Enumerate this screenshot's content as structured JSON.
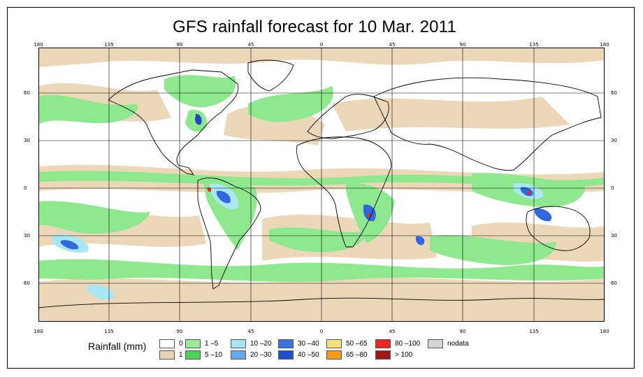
{
  "title": "GFS rainfall forecast for 10 Mar. 2011",
  "map": {
    "top_ticks": [
      "180",
      "135",
      "90",
      "45",
      "0",
      "45",
      "90",
      "135",
      "180"
    ],
    "bottom_ticks": [
      "180",
      "135",
      "90",
      "45",
      "0",
      "45",
      "90",
      "135",
      "180"
    ],
    "left_ticks": [
      "60",
      "30",
      "0",
      "30",
      "60"
    ],
    "right_ticks": [
      "60",
      "30",
      "0",
      "30",
      "60"
    ],
    "colors": {
      "ocean": "#ffffff",
      "light_rain": "#ecd8b8",
      "green_light": "#8ee88e",
      "green": "#4fd05f",
      "cyan": "#a8e8f4",
      "blue_light": "#6aa6f0",
      "blue": "#2f68e0",
      "blue_dark": "#1d46c8",
      "red": "#e8281c"
    }
  },
  "legend": {
    "title": "Rainfall (mm)",
    "items": [
      {
        "label": "0",
        "color": "#ffffff"
      },
      {
        "label": "1",
        "color": "#e9d4b2"
      },
      {
        "label": "1 –5",
        "color": "#98ec98"
      },
      {
        "label": "5 –10",
        "color": "#4ed35a"
      },
      {
        "label": "10 –20",
        "color": "#a7e5f4"
      },
      {
        "label": "20 –30",
        "color": "#6aa8ee"
      },
      {
        "label": "30 –40",
        "color": "#3a72e4"
      },
      {
        "label": "40 –50",
        "color": "#1f4fd0"
      },
      {
        "label": "50 –65",
        "color": "#f6e07a"
      },
      {
        "label": "65 –80",
        "color": "#f59a1e"
      },
      {
        "label": "80 –100",
        "color": "#e8281c"
      },
      {
        "label": "> 100",
        "color": "#a01818"
      },
      {
        "label": "nodata",
        "color": "#d4d4d4"
      }
    ]
  }
}
